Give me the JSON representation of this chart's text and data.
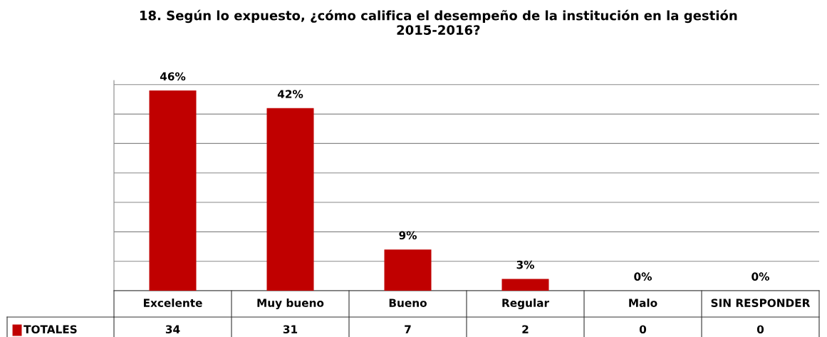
{
  "chart_data": {
    "type": "bar",
    "title": "18. Según lo expuesto, ¿cómo califica el desempeño de la institución en la gestión\n2015-2016?",
    "categories": [
      "Excelente",
      "Muy bueno",
      "Bueno",
      "Regular",
      "Malo",
      "SIN RESPONDER"
    ],
    "series": [
      {
        "name": "TOTALES",
        "color": "#c00000",
        "values": [
          34,
          31,
          7,
          2,
          0,
          0
        ]
      }
    ],
    "annotations": [
      {
        "text": "46%",
        "x": "Excelente",
        "y": 34
      },
      {
        "text": "42%",
        "x": "Muy bueno",
        "y": 31
      },
      {
        "text": "9%",
        "x": "Bueno",
        "y": 7
      },
      {
        "text": "3%",
        "x": "Regular",
        "y": 2
      },
      {
        "text": "0%",
        "x": "Malo",
        "y": 0
      },
      {
        "text": "0%",
        "x": "SIN RESPONDER",
        "y": 0
      }
    ],
    "grid": "y",
    "data_labels": true,
    "legend": "bottom left"
  }
}
